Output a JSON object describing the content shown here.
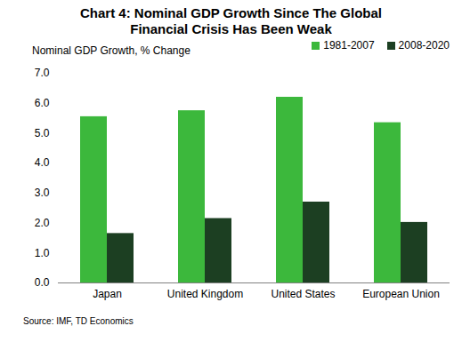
{
  "chart_data": {
    "type": "bar",
    "title": "Chart 4: Nominal GDP Growth Since The Global Financial Crisis Has Been Weak",
    "y_label": "Nominal GDP Growth, % Change",
    "categories": [
      "Japan",
      "United Kingdom",
      "United States",
      "European Union"
    ],
    "series": [
      {
        "name": "1981-2007",
        "color": "#3cb83c",
        "values": [
          5.55,
          5.75,
          6.2,
          5.35
        ]
      },
      {
        "name": "2008-2020",
        "color": "#1c3f22",
        "values": [
          1.65,
          2.15,
          2.7,
          2.02
        ]
      }
    ],
    "ylim": [
      0,
      7
    ],
    "yticks": [
      0,
      1,
      2,
      3,
      4,
      5,
      6,
      7
    ],
    "grid": false,
    "legend": "top-right",
    "source": "Source: IMF, TD Economics"
  }
}
